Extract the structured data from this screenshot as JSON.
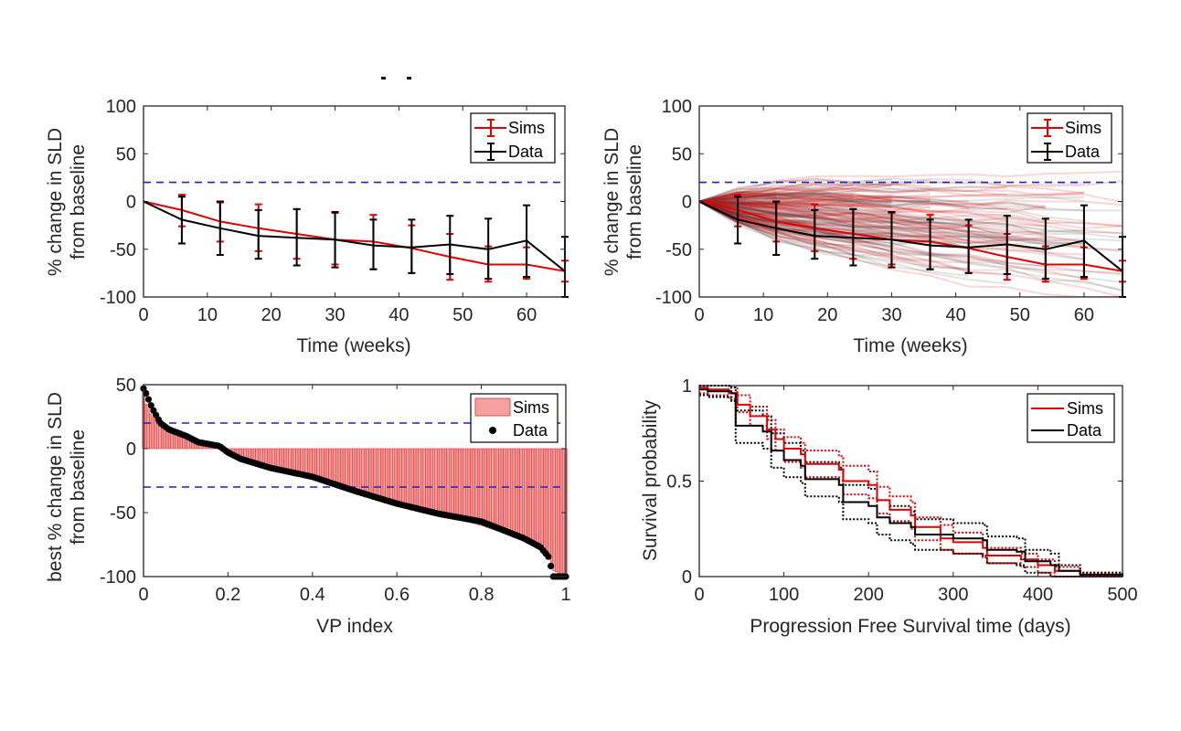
{
  "figure": {
    "colors": {
      "sims": "#e00000",
      "data": "#000000",
      "threshold": "#1f1fd0",
      "sims_bar_fill": "#f4a0a0",
      "sims_bar_edge": "#e02020",
      "axis": "#262626"
    }
  },
  "chart_data": [
    {
      "id": "panel-a",
      "type": "line",
      "title": "",
      "xlabel": "Time (weeks)",
      "ylabel_lines": [
        "% change in SLD",
        "from baseline"
      ],
      "xlim": [
        0,
        66
      ],
      "ylim": [
        -100,
        100
      ],
      "xticks": [
        0,
        10,
        20,
        30,
        40,
        50,
        60
      ],
      "yticks": [
        -100,
        -50,
        0,
        50,
        100
      ],
      "grid": false,
      "legend_position": "top-right",
      "legend": [
        "Sims",
        "Data"
      ],
      "hlines": [
        20
      ],
      "x": [
        0,
        6,
        12,
        18,
        24,
        30,
        36,
        42,
        48,
        54,
        60,
        66
      ],
      "series": [
        {
          "name": "Sims",
          "values": [
            0,
            -9,
            -21,
            -28,
            -34,
            -40,
            -42,
            -49,
            -58,
            -66,
            -66,
            -73
          ],
          "err_low": [
            0,
            -26,
            -42,
            -52,
            -60,
            -66,
            -71,
            -75,
            -82,
            -84,
            -81,
            -84
          ],
          "err_high": [
            0,
            7,
            -1,
            -3,
            -8,
            -12,
            -14,
            -25,
            -34,
            -47,
            -48,
            -62
          ]
        },
        {
          "name": "Data",
          "values": [
            0,
            -19,
            -28,
            -36,
            -38,
            -40,
            -46,
            -48,
            -45,
            -50,
            -41,
            -73
          ],
          "err_low": [
            0,
            -44,
            -56,
            -60,
            -67,
            -69,
            -71,
            -75,
            -76,
            -81,
            -79,
            -100
          ],
          "err_high": [
            0,
            5,
            0,
            -9,
            -8,
            -11,
            -19,
            -19,
            -15,
            -18,
            -4,
            -37
          ]
        }
      ]
    },
    {
      "id": "panel-b",
      "type": "line",
      "title": "",
      "xlabel": "Time (weeks)",
      "ylabel_lines": [
        "% change in SLD",
        "from baseline"
      ],
      "xlim": [
        0,
        66
      ],
      "ylim": [
        -100,
        100
      ],
      "xticks": [
        0,
        10,
        20,
        30,
        40,
        50,
        60
      ],
      "yticks": [
        -100,
        -50,
        0,
        50,
        100
      ],
      "grid": false,
      "legend_position": "top-right",
      "legend": [
        "Sims",
        "Data"
      ],
      "hlines": [
        20
      ],
      "x": [
        0,
        6,
        12,
        18,
        24,
        30,
        36,
        42,
        48,
        54,
        60,
        66
      ],
      "background_trajectories": {
        "description": "individual patient/virtual-patient spaghetti trajectories (faint red = sims, faint gray = data)",
        "count_approx": 200
      },
      "series": [
        {
          "name": "Sims",
          "values": [
            0,
            -9,
            -21,
            -28,
            -34,
            -40,
            -42,
            -49,
            -58,
            -66,
            -66,
            -73
          ],
          "err_low": [
            0,
            -26,
            -42,
            -52,
            -60,
            -66,
            -71,
            -75,
            -82,
            -84,
            -81,
            -84
          ],
          "err_high": [
            0,
            7,
            -1,
            -3,
            -8,
            -12,
            -14,
            -25,
            -34,
            -47,
            -48,
            -62
          ]
        },
        {
          "name": "Data",
          "values": [
            0,
            -19,
            -28,
            -36,
            -38,
            -40,
            -46,
            -48,
            -45,
            -50,
            -41,
            -73
          ],
          "err_low": [
            0,
            -44,
            -56,
            -60,
            -67,
            -69,
            -71,
            -75,
            -76,
            -81,
            -79,
            -100
          ],
          "err_high": [
            0,
            5,
            0,
            -9,
            -8,
            -11,
            -19,
            -19,
            -15,
            -18,
            -4,
            -37
          ]
        }
      ]
    },
    {
      "id": "panel-c",
      "type": "bar",
      "title": "",
      "xlabel": "VP index",
      "ylabel_lines": [
        "best % change in SLD",
        "from baseline"
      ],
      "xlim": [
        0,
        1
      ],
      "ylim": [
        -100,
        50
      ],
      "xticks": [
        0,
        0.2,
        0.4,
        0.6,
        0.8,
        1
      ],
      "xtick_labels": [
        "0",
        "0.2",
        "0.4",
        "0.6",
        "0.8",
        "1"
      ],
      "yticks": [
        -100,
        -50,
        0,
        50
      ],
      "grid": false,
      "legend_position": "top-right",
      "legend": [
        "Sims",
        "Data"
      ],
      "hlines": [
        20,
        -30
      ],
      "waterfall_profile": {
        "description": "sorted best % change (waterfall); piecewise profile through (VP index, value)",
        "knots_x": [
          0,
          0.005,
          0.02,
          0.04,
          0.06,
          0.1,
          0.13,
          0.18,
          0.2,
          0.23,
          0.3,
          0.4,
          0.5,
          0.6,
          0.7,
          0.8,
          0.9,
          0.94,
          0.96,
          0.97,
          1.0
        ],
        "sims_knots_y": [
          47,
          35,
          25,
          20,
          15,
          10,
          5,
          1,
          -2,
          -8,
          -15,
          -23,
          -33,
          -42,
          -51,
          -60,
          -71,
          -78,
          -85,
          -95,
          -100
        ],
        "data_knots_y": [
          47,
          44,
          32,
          20,
          15,
          10,
          5,
          2,
          -3,
          -8,
          -15,
          -22,
          -33,
          -43,
          -51,
          -57,
          -70,
          -77,
          -85,
          -100,
          -100
        ]
      }
    },
    {
      "id": "panel-d",
      "type": "line",
      "title": "",
      "xlabel": "Progression Free Survival time (days)",
      "ylabel_lines": [
        "Survival probability"
      ],
      "xlim": [
        0,
        500
      ],
      "ylim": [
        0,
        1
      ],
      "xticks": [
        0,
        100,
        200,
        300,
        400,
        500
      ],
      "yticks": [
        0,
        0.5,
        1
      ],
      "ytick_labels": [
        "0",
        "0.5",
        "1"
      ],
      "grid": false,
      "legend_position": "top-right",
      "legend": [
        "Sims",
        "Data"
      ],
      "series": [
        {
          "name": "Sims",
          "style": "step",
          "x": [
            0,
            10,
            35,
            45,
            60,
            80,
            90,
            100,
            120,
            125,
            165,
            170,
            200,
            210,
            225,
            250,
            255,
            285,
            300,
            335,
            340,
            380,
            400,
            420,
            450,
            500
          ],
          "values": [
            0.99,
            0.98,
            0.96,
            0.9,
            0.84,
            0.77,
            0.72,
            0.67,
            0.64,
            0.59,
            0.56,
            0.5,
            0.48,
            0.4,
            0.35,
            0.32,
            0.26,
            0.2,
            0.18,
            0.15,
            0.11,
            0.09,
            0.06,
            0.03,
            0.01,
            0
          ],
          "ci_low": [
            0.96,
            0.95,
            0.93,
            0.86,
            0.79,
            0.72,
            0.66,
            0.6,
            0.57,
            0.52,
            0.5,
            0.43,
            0.41,
            0.33,
            0.29,
            0.25,
            0.19,
            0.14,
            0.12,
            0.1,
            0.07,
            0.05,
            0.02,
            0.0,
            0.0,
            0
          ],
          "ci_high": [
            1.0,
            1.0,
            0.99,
            0.95,
            0.89,
            0.82,
            0.77,
            0.73,
            0.7,
            0.66,
            0.63,
            0.58,
            0.55,
            0.47,
            0.42,
            0.39,
            0.31,
            0.27,
            0.23,
            0.19,
            0.15,
            0.12,
            0.09,
            0.05,
            0.02,
            0
          ]
        },
        {
          "name": "Data",
          "style": "step",
          "x": [
            0,
            10,
            38,
            43,
            75,
            85,
            100,
            120,
            125,
            165,
            170,
            200,
            210,
            225,
            250,
            255,
            300,
            335,
            340,
            375,
            385,
            415,
            425,
            450,
            500
          ],
          "values": [
            0.98,
            0.97,
            0.96,
            0.79,
            0.76,
            0.66,
            0.61,
            0.58,
            0.51,
            0.48,
            0.39,
            0.37,
            0.31,
            0.28,
            0.26,
            0.22,
            0.2,
            0.19,
            0.14,
            0.13,
            0.08,
            0.06,
            0.03,
            0.01,
            0
          ],
          "ci_low": [
            0.95,
            0.94,
            0.92,
            0.7,
            0.67,
            0.57,
            0.52,
            0.49,
            0.42,
            0.39,
            0.3,
            0.28,
            0.22,
            0.19,
            0.17,
            0.14,
            0.12,
            0.11,
            0.07,
            0.06,
            0.02,
            0.0,
            0.0,
            0.0,
            0
          ],
          "ci_high": [
            1.0,
            1.0,
            0.99,
            0.87,
            0.84,
            0.75,
            0.7,
            0.66,
            0.6,
            0.57,
            0.48,
            0.46,
            0.4,
            0.37,
            0.34,
            0.3,
            0.28,
            0.27,
            0.21,
            0.2,
            0.14,
            0.12,
            0.06,
            0.02,
            0
          ]
        }
      ]
    }
  ]
}
